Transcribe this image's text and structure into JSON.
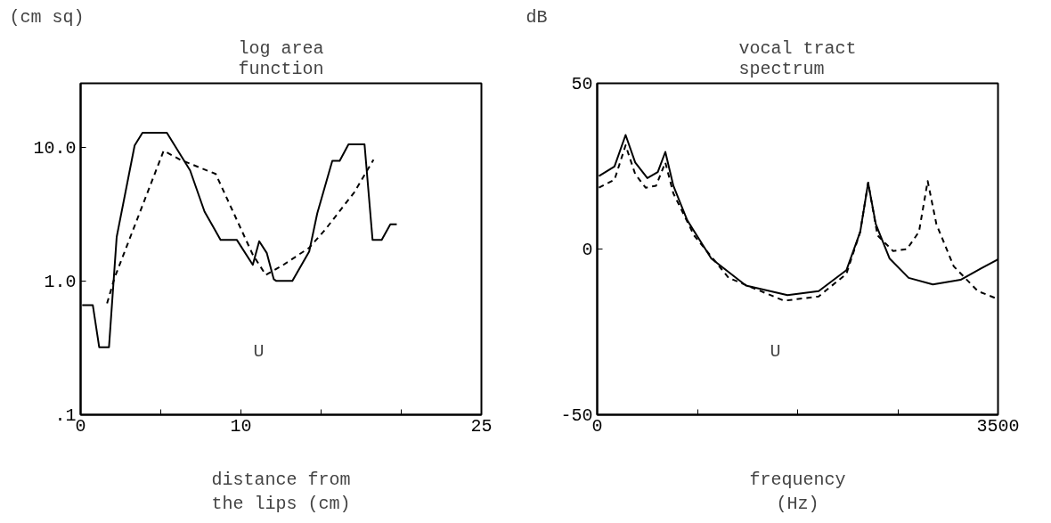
{
  "chart_data": [
    {
      "type": "line",
      "title": "log area\nfunction",
      "ylabel": "(cm sq)",
      "xlabel": "distance from\nthe lips (cm)",
      "log": "y",
      "grid": false,
      "xlim": [
        0,
        25
      ],
      "ylim": [
        0.1,
        30
      ],
      "xticks": [
        0,
        {
          "value": 5,
          "label": null
        },
        10,
        {
          "value": 15,
          "label": null
        },
        {
          "value": 20,
          "label": null
        },
        25
      ],
      "yticks": [
        {
          "value": 0.1,
          "label": ".1"
        },
        {
          "value": 1,
          "label": "1.0"
        },
        {
          "value": 10,
          "label": "10.0"
        }
      ],
      "annotations": [
        "U"
      ],
      "series": [
        {
          "color": "#000000",
          "line_style": "solid",
          "x": [
            0.1,
            0.76,
            1.16,
            1.77,
            2.25,
            3.37,
            3.86,
            5.38,
            6.83,
            7.73,
            8.73,
            9.74,
            10.74,
            11.14,
            11.61,
            12.05,
            12.21,
            13.21,
            14.26,
            14.76,
            15.7,
            16.16,
            16.71,
            17.71,
            18.21,
            18.78,
            19.32,
            19.72
          ],
          "values": [
            0.66,
            0.66,
            0.32,
            0.32,
            2.13,
            10.3,
            12.8,
            12.8,
            6.7,
            3.3,
            2.03,
            2.03,
            1.32,
            1.98,
            1.62,
            1.03,
            1.0,
            1.0,
            1.66,
            3.2,
            7.9,
            7.9,
            10.5,
            10.5,
            2.03,
            2.03,
            2.65,
            2.65
          ]
        },
        {
          "color": "#000000",
          "line_style": "dashed",
          "x": [
            1.65,
            2.11,
            5.18,
            6.22,
            8.43,
            10.74,
            11.55,
            12.65,
            14.26,
            15.26,
            17.07,
            18.27
          ],
          "values": [
            0.68,
            1.05,
            9.4,
            8.05,
            6.3,
            1.57,
            1.11,
            1.32,
            1.77,
            2.42,
            4.6,
            8.05
          ]
        }
      ]
    },
    {
      "type": "line",
      "title": "vocal tract\nspectrum",
      "ylabel": "dB",
      "xlabel": "frequency\n(Hz)",
      "grid": false,
      "xlim": [
        0,
        3500
      ],
      "ylim": [
        -50,
        50
      ],
      "xticks": [
        0,
        {
          "value": 875,
          "label": null
        },
        {
          "value": 1750,
          "label": null
        },
        {
          "value": 2625,
          "label": null
        },
        3500
      ],
      "yticks": [
        -50,
        0,
        50
      ],
      "annotations": [
        "U"
      ],
      "series": [
        {
          "color": "#000000",
          "line_style": "solid",
          "x": [
            15,
            151,
            248,
            332,
            438,
            529,
            595,
            665,
            786,
            997,
            1299,
            1662,
            1934,
            2176,
            2297,
            2366,
            2433,
            2554,
            2720,
            2931,
            3173,
            3354,
            3500
          ],
          "values": [
            22.0,
            24.9,
            34.4,
            26.1,
            21.4,
            23.2,
            29.3,
            19.1,
            8.7,
            -2.9,
            -11.0,
            -13.9,
            -12.7,
            -6.4,
            5.2,
            20.0,
            7.5,
            -2.9,
            -8.7,
            -10.7,
            -9.3,
            -5.8,
            -3.1
          ]
        },
        {
          "color": "#000000",
          "line_style": "dashed",
          "x": [
            15,
            151,
            248,
            332,
            423,
            514,
            595,
            665,
            846,
            1148,
            1632,
            1934,
            2176,
            2297,
            2366,
            2448,
            2584,
            2705,
            2810,
            2886,
            2962,
            3113,
            3324,
            3500
          ],
          "values": [
            18.5,
            20.9,
            31.3,
            22.6,
            18.5,
            19.1,
            26.1,
            16.8,
            4.1,
            -8.7,
            -15.6,
            -14.3,
            -7.5,
            5.2,
            20.0,
            4.1,
            -0.6,
            0,
            5.2,
            20.5,
            7.5,
            -5.2,
            -12.7,
            -15.1
          ]
        }
      ]
    }
  ]
}
